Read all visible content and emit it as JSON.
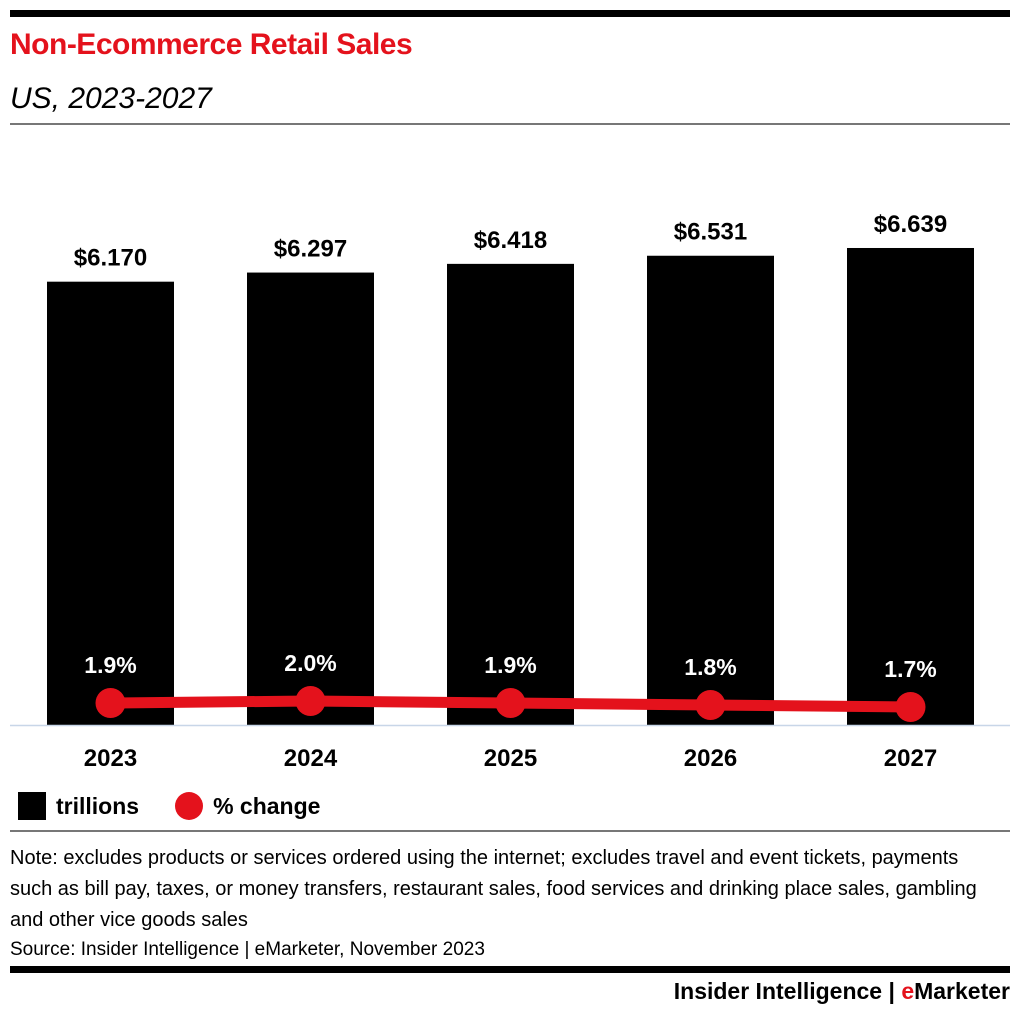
{
  "chart_data": {
    "type": "bar",
    "title": "Non-Ecommerce Retail Sales",
    "subtitle": "US, 2023-2027",
    "categories": [
      "2023",
      "2024",
      "2025",
      "2026",
      "2027"
    ],
    "series": [
      {
        "name": "trillions",
        "type": "bar",
        "values": [
          6.17,
          6.297,
          6.418,
          6.531,
          6.639
        ],
        "labels": [
          "$6.170",
          "$6.297",
          "$6.418",
          "$6.531",
          "$6.639"
        ],
        "color": "#000000"
      },
      {
        "name": "% change",
        "type": "line",
        "values": [
          1.9,
          2.0,
          1.9,
          1.8,
          1.7
        ],
        "labels": [
          "1.9%",
          "2.0%",
          "1.9%",
          "1.8%",
          "1.7%"
        ],
        "color": "#e4121c"
      }
    ],
    "ylim": [
      0,
      7
    ],
    "grid": false,
    "legend": "bottom-left"
  },
  "note": "Note: excludes products or services ordered using the internet; excludes travel and event tickets, payments such as bill pay, taxes, or money transfers, restaurant sales, food services and drinking place sales, gambling and other vice goods sales",
  "source": "Source: Insider Intelligence | eMarketer, November 2023",
  "logo": {
    "text": "Insider Intelligence | eMarketer",
    "part1": "Insider Intelligence | ",
    "e": "e",
    "part2": "Marketer"
  }
}
